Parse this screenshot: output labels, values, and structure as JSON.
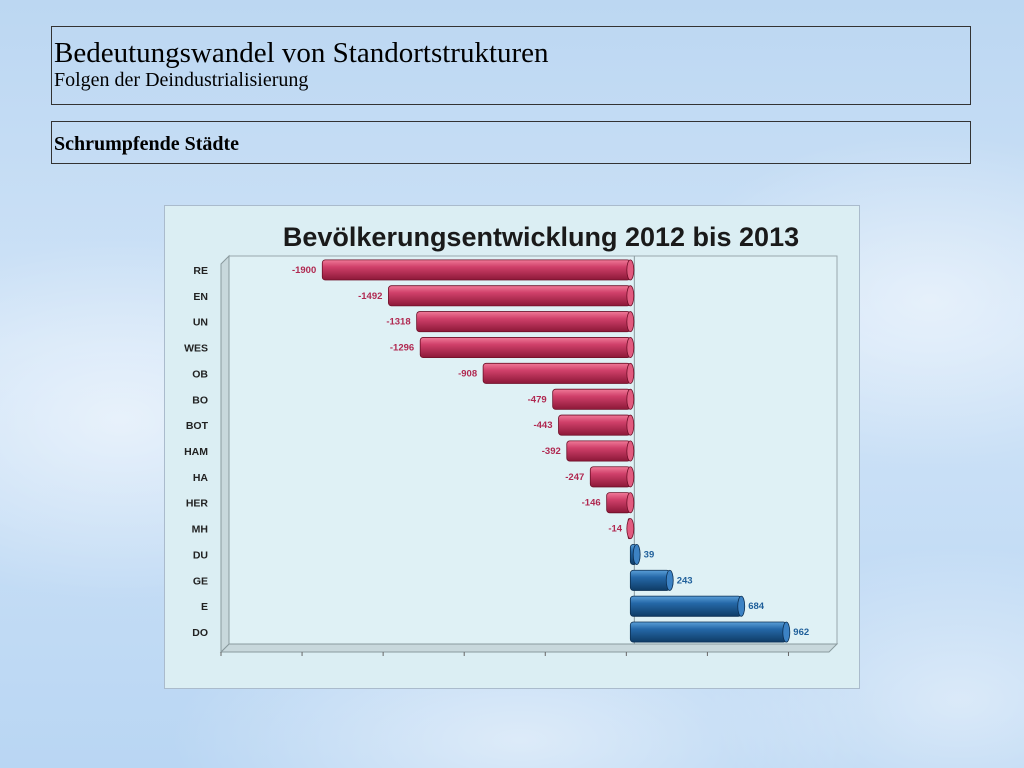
{
  "header": {
    "title": "Bedeutungswandel von Standortstrukturen",
    "subtitle": "Folgen der Deindustrialisierung"
  },
  "section": {
    "label": "Schrumpfende Städte"
  },
  "colors": {
    "negative": "#c0305a",
    "positive": "#1f5f9a",
    "negative_label": "#b02850",
    "positive_label": "#1f5f9a",
    "plot_bg": "#dff1f5"
  },
  "chart_data": {
    "type": "bar",
    "orientation": "horizontal",
    "title": "Bevölkerungsentwicklung 2012 bis 2013",
    "categories": [
      "RE",
      "EN",
      "UN",
      "WES",
      "OB",
      "BO",
      "BOT",
      "HAM",
      "HA",
      "HER",
      "MH",
      "DU",
      "GE",
      "E",
      "DO"
    ],
    "values": [
      -1900,
      -1492,
      -1318,
      -1296,
      -908,
      -479,
      -443,
      -392,
      -247,
      -146,
      -14,
      39,
      243,
      684,
      962
    ],
    "value_labels": [
      "-1900",
      "-1492",
      "-1318",
      "-1296",
      "-908",
      "-479",
      "-443",
      "-392",
      "-247",
      "-146",
      "-14",
      "39",
      "243",
      "684",
      "962"
    ],
    "xlim": [
      -2500,
      1250
    ],
    "grid_x": true,
    "legend": "none"
  }
}
